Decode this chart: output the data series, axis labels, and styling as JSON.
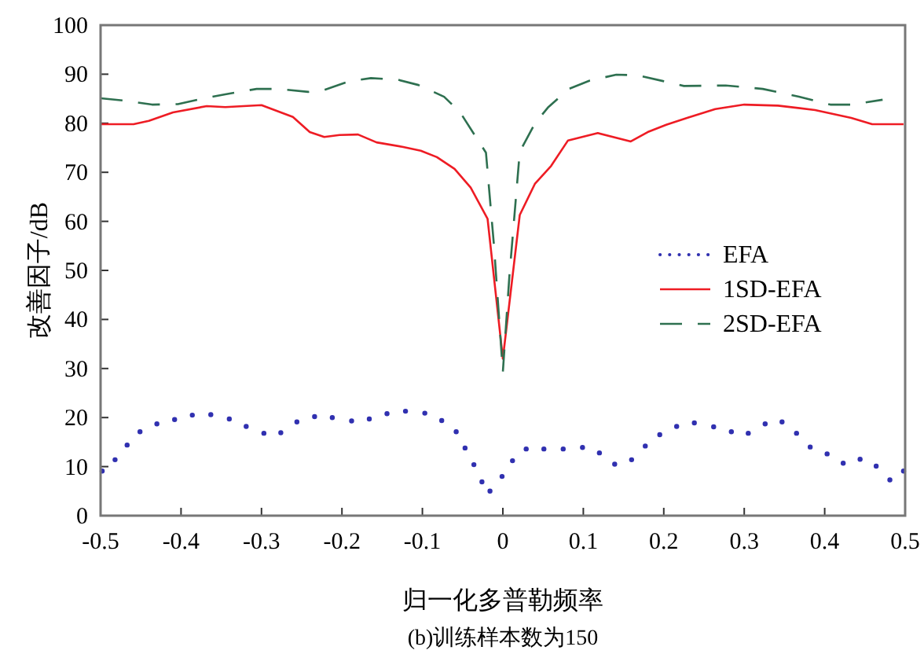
{
  "chart_data": {
    "type": "line",
    "xlabel": "归一化多普勒频率",
    "ylabel": "改善因子/dB",
    "annotations": [
      "(b)训练样本数为150"
    ],
    "xlim": [
      -0.5,
      0.5
    ],
    "xticks": [
      -0.5,
      -0.4,
      -0.3,
      -0.2,
      -0.1,
      0,
      0.1,
      0.2,
      0.3,
      0.4,
      0.5
    ],
    "ylim": [
      0,
      100
    ],
    "yticks": [
      0,
      10,
      20,
      30,
      40,
      50,
      60,
      70,
      80,
      90,
      100
    ],
    "grid": false,
    "legend": "right",
    "series": [
      {
        "name": "EFA",
        "color": "#3030b0",
        "type": "scatter",
        "marker": "circle",
        "x": [
          -0.498,
          -0.482,
          -0.467,
          -0.451,
          -0.43,
          -0.408,
          -0.386,
          -0.363,
          -0.34,
          -0.319,
          -0.297,
          -0.276,
          -0.256,
          -0.234,
          -0.212,
          -0.188,
          -0.166,
          -0.144,
          -0.121,
          -0.097,
          -0.076,
          -0.058,
          -0.047,
          -0.036,
          -0.026,
          -0.016,
          -0.001,
          0.012,
          0.029,
          0.051,
          0.075,
          0.099,
          0.12,
          0.139,
          0.16,
          0.177,
          0.195,
          0.216,
          0.238,
          0.262,
          0.284,
          0.305,
          0.326,
          0.347,
          0.365,
          0.382,
          0.403,
          0.423,
          0.444,
          0.464,
          0.481,
          0.498
        ],
        "values": [
          9.1,
          11.4,
          14.4,
          17.1,
          18.7,
          19.6,
          20.5,
          20.6,
          19.7,
          18.2,
          16.8,
          16.9,
          19.1,
          20.2,
          20.0,
          19.3,
          19.7,
          20.8,
          21.3,
          20.9,
          19.4,
          17.1,
          13.8,
          10.4,
          6.9,
          5.0,
          8.0,
          11.2,
          13.6,
          13.6,
          13.6,
          13.9,
          12.8,
          10.5,
          11.4,
          14.2,
          16.5,
          18.2,
          18.9,
          18.1,
          17.1,
          16.8,
          18.7,
          19.1,
          16.8,
          14.0,
          12.6,
          10.7,
          11.5,
          10.1,
          7.3,
          9.1
        ]
      },
      {
        "name": "1SD-EFA",
        "color": "#ee1c24",
        "line_style": "solid",
        "x": [
          -0.5,
          -0.459,
          -0.44,
          -0.41,
          -0.368,
          -0.345,
          -0.3,
          -0.261,
          -0.24,
          -0.222,
          -0.203,
          -0.18,
          -0.157,
          -0.125,
          -0.102,
          -0.082,
          -0.06,
          -0.04,
          -0.019,
          0,
          0.021,
          0.04,
          0.06,
          0.081,
          0.118,
          0.159,
          0.18,
          0.203,
          0.229,
          0.264,
          0.3,
          0.342,
          0.388,
          0.433,
          0.459,
          0.498
        ],
        "values": [
          79.8,
          79.8,
          80.5,
          82.2,
          83.5,
          83.3,
          83.7,
          81.3,
          78.2,
          77.2,
          77.6,
          77.7,
          76.1,
          75.2,
          74.4,
          73.1,
          70.7,
          66.9,
          60.5,
          32.0,
          61.3,
          67.7,
          71.3,
          76.5,
          78.0,
          76.3,
          78.2,
          79.7,
          81.1,
          82.9,
          83.8,
          83.6,
          82.7,
          81.1,
          79.8,
          79.8
        ]
      },
      {
        "name": "2SD-EFA",
        "color": "#2e7050",
        "line_style": "dashed",
        "x": [
          -0.5,
          -0.469,
          -0.436,
          -0.404,
          -0.371,
          -0.345,
          -0.306,
          -0.28,
          -0.242,
          -0.222,
          -0.19,
          -0.164,
          -0.131,
          -0.105,
          -0.073,
          -0.053,
          -0.021,
          -0.011,
          0,
          0.008,
          0.021,
          0.04,
          0.056,
          0.082,
          0.108,
          0.141,
          0.167,
          0.199,
          0.225,
          0.277,
          0.323,
          0.368,
          0.407,
          0.433,
          0.472
        ],
        "values": [
          85.1,
          84.6,
          83.8,
          83.9,
          85.1,
          85.9,
          87.0,
          87.0,
          86.4,
          86.8,
          88.6,
          89.2,
          88.9,
          87.8,
          85.4,
          82.2,
          74.0,
          55.0,
          29.3,
          48.6,
          74.2,
          80.0,
          83.2,
          87.0,
          88.7,
          89.9,
          89.8,
          88.6,
          87.6,
          87.7,
          87.0,
          85.4,
          83.8,
          83.8,
          84.8
        ]
      }
    ]
  }
}
